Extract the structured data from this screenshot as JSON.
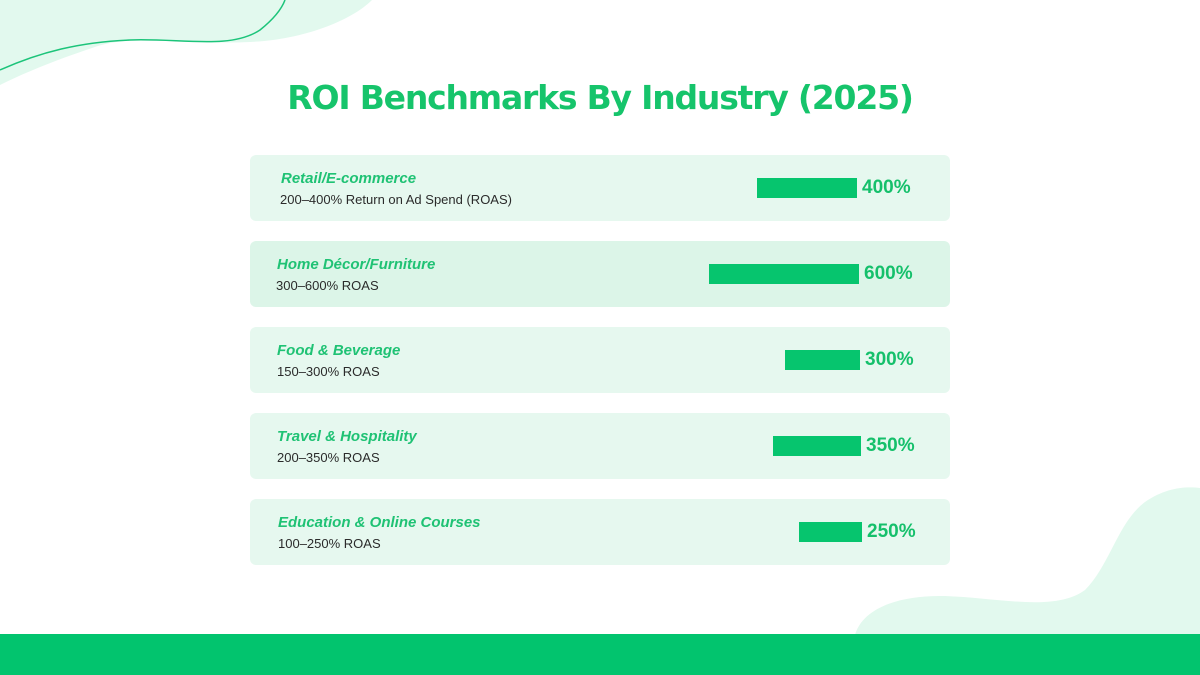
{
  "page": {
    "title": "ROI Benchmarks By Industry (2025)",
    "accent_color": "#06C56E",
    "row_background": "#E6F8EF",
    "footer_color": "#02C46E"
  },
  "chart_data": {
    "type": "bar",
    "orientation": "horizontal",
    "title": "ROI Benchmarks By Industry (2025)",
    "categories": [
      "Retail/E-commerce",
      "Home Décor/Furniture",
      "Food & Beverage",
      "Travel & Hospitality",
      "Education & Online Courses"
    ],
    "subtitles": [
      "200–400% Return on Ad Spend (ROAS)",
      "300–600% ROAS",
      "150–300% ROAS",
      "200–350% ROAS",
      "100–250% ROAS"
    ],
    "values": [
      400,
      600,
      300,
      350,
      250
    ],
    "value_labels": [
      "400%",
      "600%",
      "300%",
      "350%",
      "250%"
    ],
    "unit": "%",
    "xlim": [
      0,
      600
    ],
    "grid": false,
    "legend": "none"
  }
}
